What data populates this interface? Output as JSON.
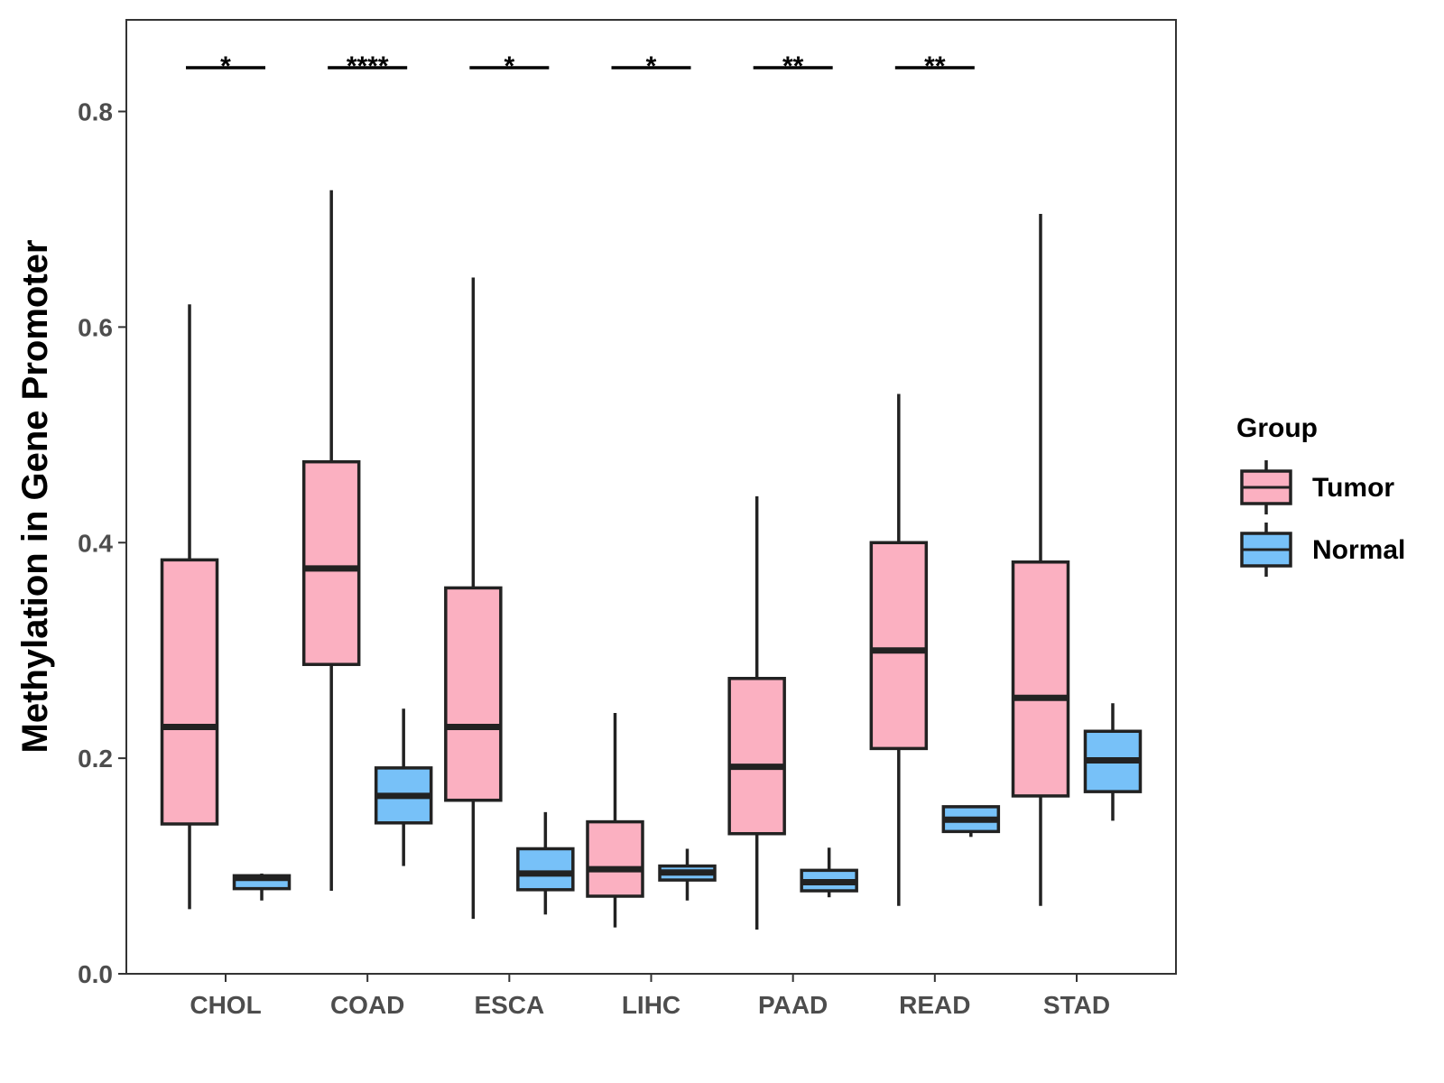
{
  "chart_data": {
    "type": "boxplot",
    "ylabel": "Methylation in Gene Promoter",
    "xlabel": "",
    "ylim": [
      0,
      0.885
    ],
    "yticks": [
      0.0,
      0.2,
      0.4,
      0.6,
      0.8
    ],
    "ytick_labels": [
      "0.0",
      "0.2",
      "0.4",
      "0.6",
      "0.8"
    ],
    "categories": [
      "CHOL",
      "COAD",
      "ESCA",
      "LIHC",
      "PAAD",
      "READ",
      "STAD"
    ],
    "legend": {
      "title": "Group",
      "position": "right",
      "entries": [
        {
          "name": "Tumor",
          "color": "#fbb0c1"
        },
        {
          "name": "Normal",
          "color": "#77c1f8"
        }
      ]
    },
    "series": [
      {
        "name": "Tumor",
        "color": "#fbb0c1",
        "boxes": [
          {
            "min": 0.06,
            "q1": 0.139,
            "median": 0.229,
            "q3": 0.384,
            "max": 0.621
          },
          {
            "min": 0.077,
            "q1": 0.287,
            "median": 0.376,
            "q3": 0.475,
            "max": 0.727
          },
          {
            "min": 0.051,
            "q1": 0.161,
            "median": 0.229,
            "q3": 0.358,
            "max": 0.646
          },
          {
            "min": 0.043,
            "q1": 0.072,
            "median": 0.097,
            "q3": 0.141,
            "max": 0.242
          },
          {
            "min": 0.041,
            "q1": 0.13,
            "median": 0.192,
            "q3": 0.274,
            "max": 0.443
          },
          {
            "min": 0.063,
            "q1": 0.209,
            "median": 0.3,
            "q3": 0.4,
            "max": 0.538
          },
          {
            "min": 0.063,
            "q1": 0.165,
            "median": 0.256,
            "q3": 0.382,
            "max": 0.705
          }
        ]
      },
      {
        "name": "Normal",
        "color": "#77c1f8",
        "boxes": [
          {
            "min": 0.068,
            "q1": 0.079,
            "median": 0.089,
            "q3": 0.091,
            "max": 0.093
          },
          {
            "min": 0.1,
            "q1": 0.14,
            "median": 0.165,
            "q3": 0.191,
            "max": 0.246
          },
          {
            "min": 0.055,
            "q1": 0.078,
            "median": 0.093,
            "q3": 0.116,
            "max": 0.15
          },
          {
            "min": 0.068,
            "q1": 0.087,
            "median": 0.094,
            "q3": 0.1,
            "max": 0.116
          },
          {
            "min": 0.071,
            "q1": 0.077,
            "median": 0.085,
            "q3": 0.096,
            "max": 0.117
          },
          {
            "min": 0.127,
            "q1": 0.132,
            "median": 0.143,
            "q3": 0.155,
            "max": 0.155
          },
          {
            "min": 0.142,
            "q1": 0.169,
            "median": 0.198,
            "q3": 0.225,
            "max": 0.251
          }
        ]
      }
    ],
    "significance": [
      "*",
      "****",
      "*",
      "*",
      "**",
      "**",
      ""
    ]
  }
}
